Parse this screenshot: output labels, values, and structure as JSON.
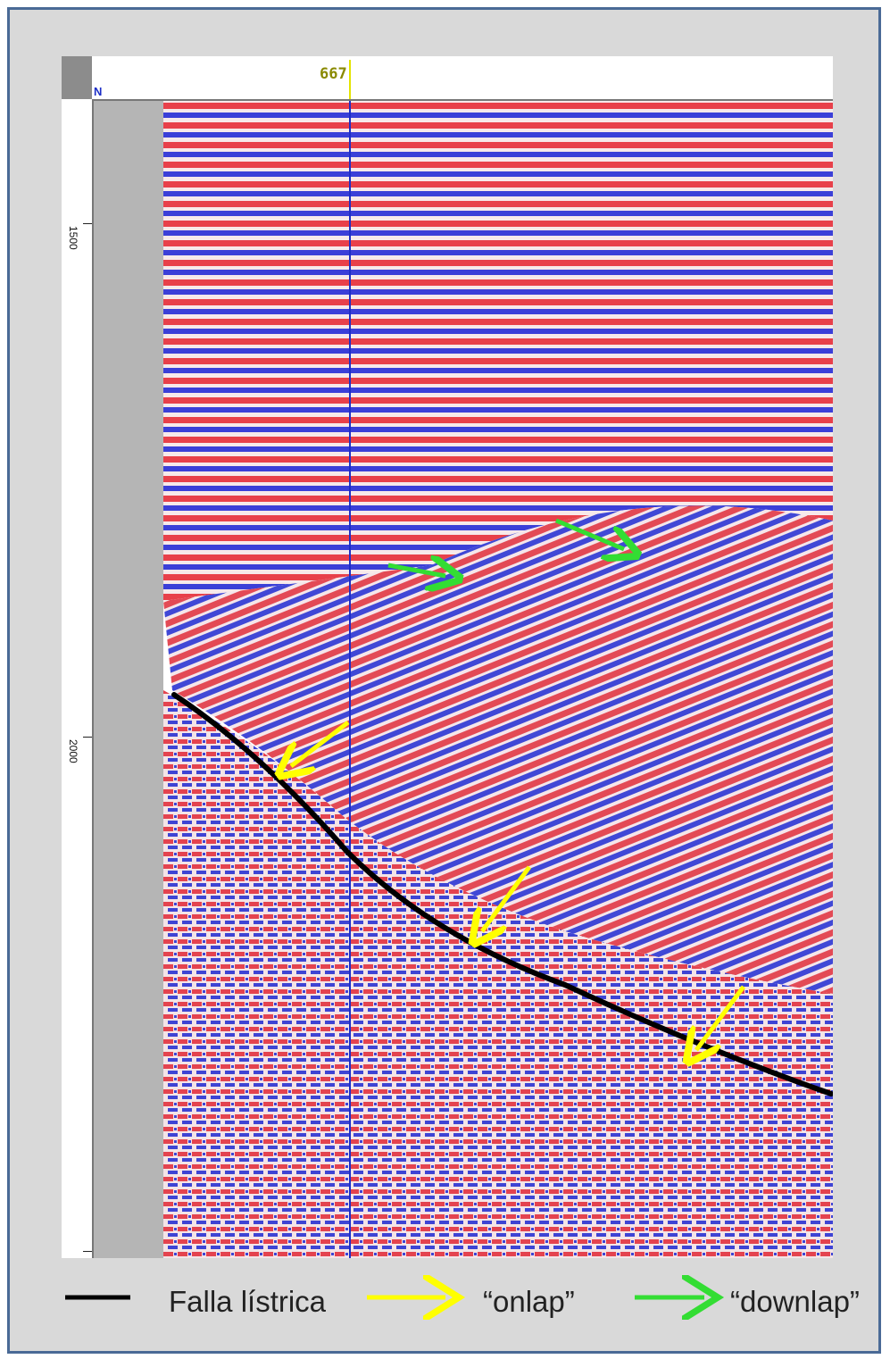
{
  "viewer": {
    "trace_label": "667",
    "orientation_label": "N",
    "depth_ticks": [
      "1500",
      "2000"
    ]
  },
  "annotations": {
    "fault": {
      "color": "#000000"
    },
    "onlap_arrows": {
      "color": "#ffff00",
      "count": 3
    },
    "downlap_arrows": {
      "color": "#33dd33",
      "count": 2
    }
  },
  "legend": {
    "fault_label": "Falla lístrica",
    "onlap_label": "“onlap”",
    "downlap_label": "“downlap”"
  },
  "colors": {
    "seismic_positive": "#e8404a",
    "seismic_negative": "#3b3fd8",
    "trace_marker": "#1c2ec7",
    "frame_border": "#4a6a96",
    "background": "#d9d9d9"
  }
}
